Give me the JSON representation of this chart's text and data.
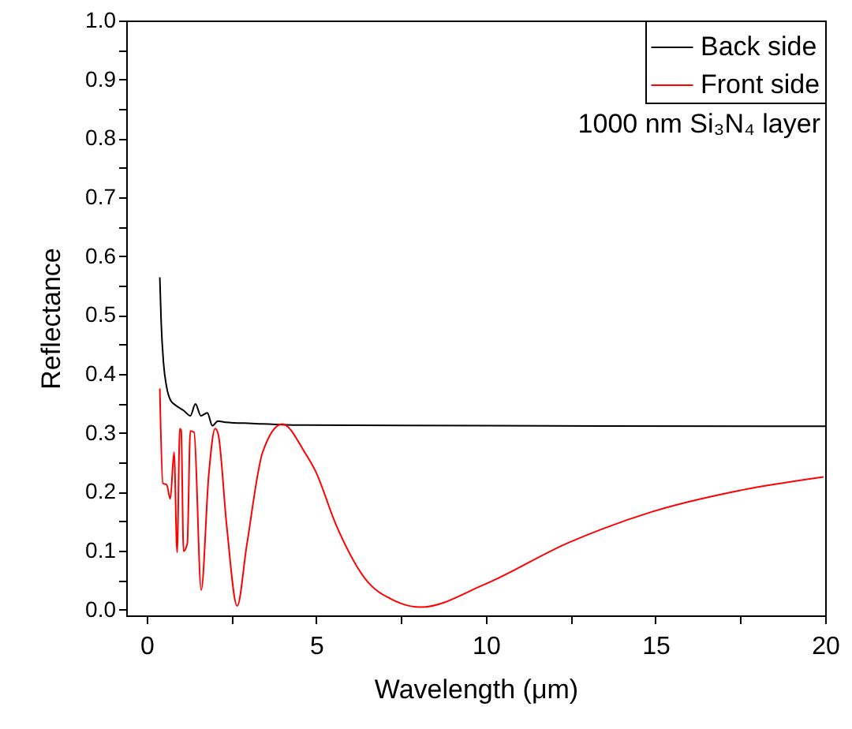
{
  "chart_data": {
    "type": "line",
    "xlabel": "Wavelength (μm)",
    "ylabel": "Reflectance",
    "xlim": [
      -0.6,
      20
    ],
    "ylim": [
      -0.01,
      1.0
    ],
    "xticks": [
      0,
      {
        "value": 2.5,
        "label": null
      },
      5,
      {
        "value": 7.5,
        "label": null
      },
      10,
      {
        "value": 12.5,
        "label": null
      },
      15,
      {
        "value": 17.5,
        "label": null
      },
      20
    ],
    "yticks": [
      {
        "value": 0,
        "label": "0.0"
      },
      {
        "value": 0.05,
        "label": null
      },
      0.1,
      {
        "value": 0.15,
        "label": null
      },
      0.2,
      {
        "value": 0.25,
        "label": null
      },
      0.3,
      {
        "value": 0.35,
        "label": null
      },
      0.4,
      {
        "value": 0.45,
        "label": null
      },
      0.5,
      {
        "value": 0.55,
        "label": null
      },
      0.6,
      {
        "value": 0.65,
        "label": null
      },
      0.7,
      {
        "value": 0.75,
        "label": null
      },
      0.8,
      {
        "value": 0.85,
        "label": null
      },
      0.9,
      {
        "value": 0.95,
        "label": null
      },
      {
        "value": 1,
        "label": "1.0"
      }
    ],
    "grid": false,
    "legend": "top right",
    "marker": "none",
    "line_style": "solid",
    "annotations": [
      "1000 nm Si₃N₄ layer"
    ],
    "series": [
      {
        "name": "Back side",
        "color": "#000000",
        "x": [
          0.39,
          0.43,
          0.5,
          0.59,
          0.7,
          0.85,
          1.09,
          1.29,
          1.44,
          1.6,
          1.79,
          1.94,
          2.1,
          2.33,
          3.1,
          4.66,
          10,
          20
        ],
        "values": [
          0.564,
          0.488,
          0.418,
          0.378,
          0.356,
          0.347,
          0.338,
          0.329,
          0.349,
          0.329,
          0.334,
          0.312,
          0.32,
          0.318,
          0.316,
          0.313,
          0.312,
          0.311
        ]
      },
      {
        "name": "Front side",
        "color": "#ff0000",
        "x": [
          0.39,
          0.48,
          0.59,
          0.7,
          0.81,
          0.9,
          0.98,
          1.02,
          1.09,
          1.2,
          1.29,
          1.4,
          1.61,
          1.83,
          2.02,
          2.11,
          2.36,
          2.67,
          2.95,
          3.42,
          4.0,
          4.66,
          4.97,
          5.59,
          6.53,
          7.2,
          8.08,
          9.94,
          12.42,
          14.9,
          17.39,
          19.95
        ],
        "values": [
          0.375,
          0.214,
          0.212,
          0.188,
          0.267,
          0.097,
          0.307,
          0.304,
          0.099,
          0.112,
          0.303,
          0.301,
          0.033,
          0.227,
          0.307,
          0.298,
          0.143,
          0.006,
          0.108,
          0.267,
          0.315,
          0.267,
          0.236,
          0.143,
          0.046,
          0.018,
          0.004,
          0.042,
          0.113,
          0.166,
          0.201,
          0.225
        ]
      }
    ]
  }
}
